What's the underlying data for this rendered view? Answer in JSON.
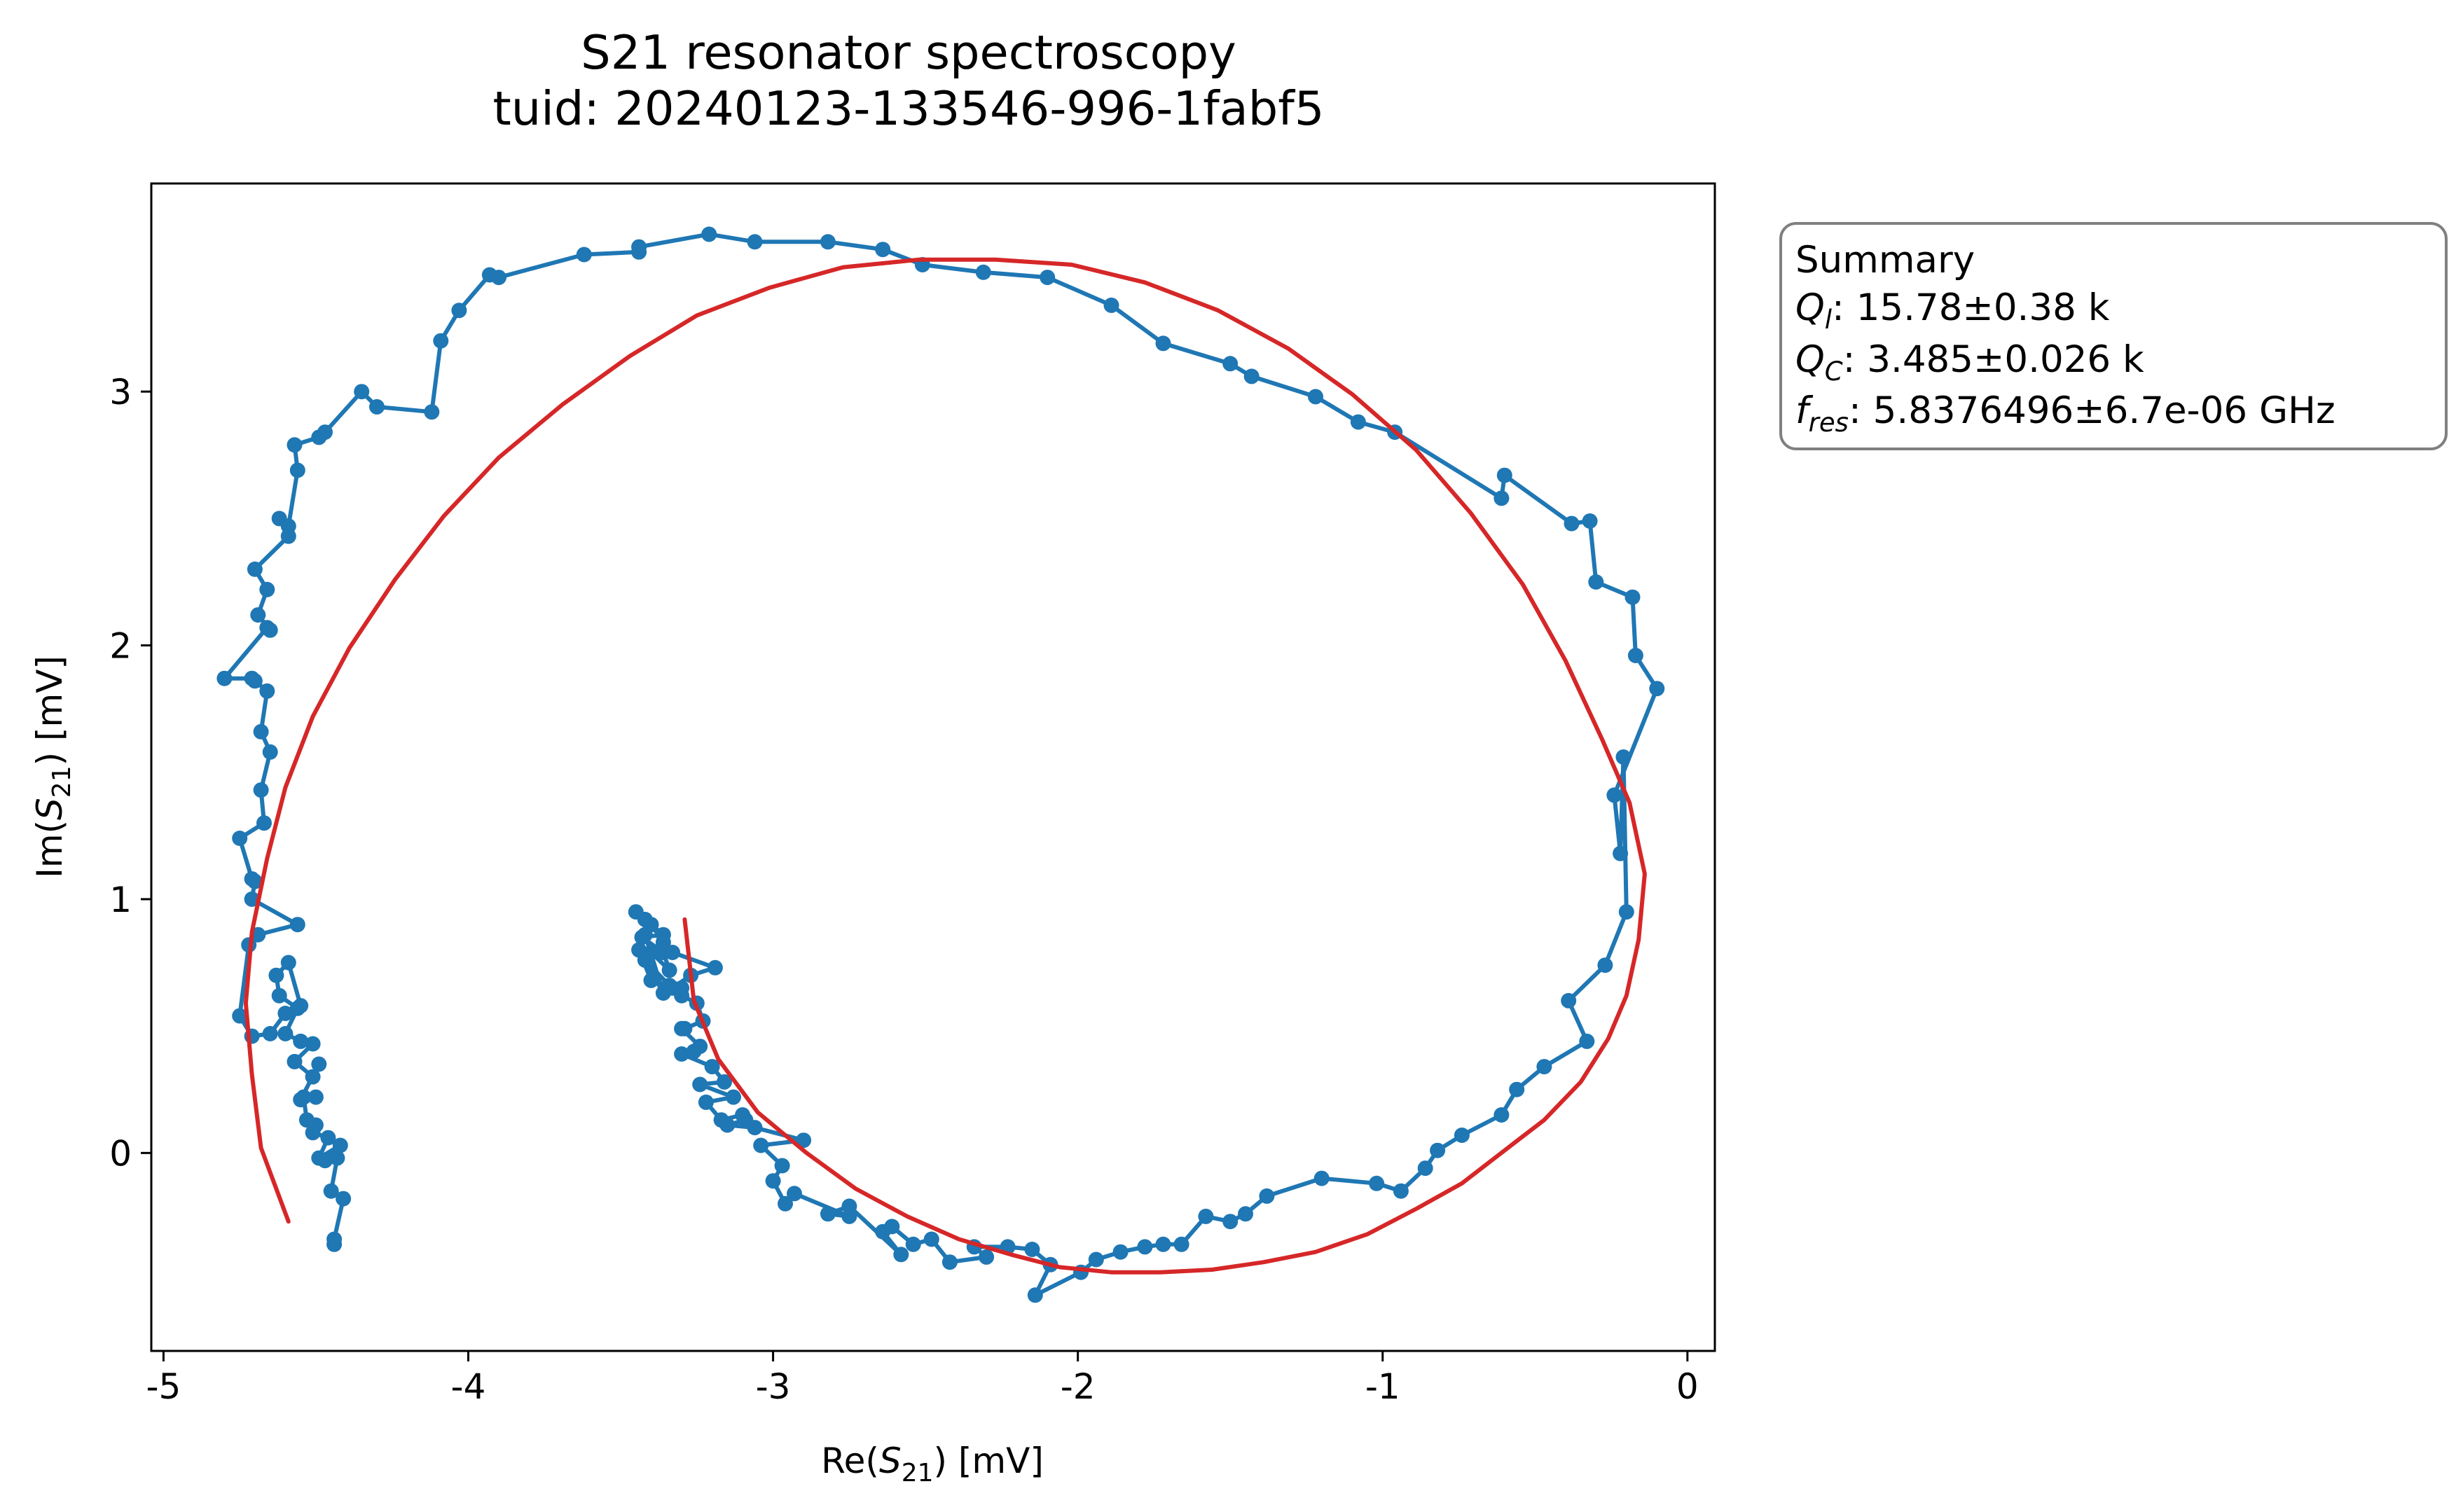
{
  "chart_data": {
    "type": "line",
    "title": "S21 resonator spectroscopy",
    "subtitle": "tuid: 20240123-133546-996-1fabf5",
    "xlabel": "Re(S21) [mV]",
    "ylabel": "Im(S21) [mV]",
    "xlabel_parts": [
      "Re(",
      "S",
      "21",
      ") [mV]"
    ],
    "ylabel_parts": [
      "Im(",
      "S",
      "21",
      ") [mV]"
    ],
    "xlim": [
      -5.04,
      0.09
    ],
    "ylim": [
      -0.78,
      3.82
    ],
    "xticks": [
      -5,
      -4,
      -3,
      -2,
      -1,
      0
    ],
    "yticks": [
      0,
      1,
      2,
      3
    ],
    "xtick_labels": [
      "-5",
      "-4",
      "-3",
      "-2",
      "-1",
      "0"
    ],
    "ytick_labels": [
      "0",
      "1",
      "2",
      "3"
    ],
    "grid": false,
    "summary": {
      "heading": "Summary",
      "ql_sym": "Q",
      "ql_sub": "l",
      "ql_value": ": 15.78±0.38 k",
      "qc_sym": "Q",
      "qc_sub": "C",
      "qc_value": ": 3.485±0.026 k",
      "fres_sym": "f",
      "fres_sub": "res",
      "fres_value": ": 5.8376496±6.7e-06 GHz"
    },
    "series": [
      {
        "color": "#1f77b4",
        "marker": "circle",
        "x": [
          -4.44,
          -4.44,
          -4.41,
          -4.45,
          -4.43,
          -4.47,
          -4.42,
          -4.49,
          -4.46,
          -4.51,
          -4.5,
          -4.53,
          -4.54,
          -4.5,
          -4.55,
          -4.49,
          -4.51,
          -4.57,
          -4.51,
          -4.55,
          -4.6,
          -4.56,
          -4.62,
          -4.63,
          -4.59,
          -4.55,
          -4.6,
          -4.65,
          -4.71,
          -4.75,
          -4.72,
          -4.69,
          -4.56,
          -4.71,
          -4.7,
          -4.71,
          -4.75,
          -4.67,
          -4.68,
          -4.65,
          -4.68,
          -4.66,
          -4.7,
          -4.71,
          -4.8,
          -4.66,
          -4.65,
          -4.69,
          -4.66,
          -4.7,
          -4.59,
          -4.62,
          -4.59,
          -4.56,
          -4.57,
          -4.49,
          -4.47,
          -4.35,
          -4.3,
          -4.12,
          -4.09,
          -4.03,
          -3.93,
          -3.9,
          -3.62,
          -3.44,
          -3.44,
          -3.21,
          -3.06,
          -2.82,
          -2.64,
          -2.51,
          -2.31,
          -2.1,
          -1.89,
          -1.72,
          -1.5,
          -1.43,
          -1.22,
          -1.08,
          -0.96,
          -0.61,
          -0.6,
          -0.38,
          -0.32,
          -0.3,
          -0.18,
          -0.17,
          -0.1,
          -0.24,
          -0.22,
          -0.21,
          -0.2,
          -0.27,
          -0.39,
          -0.33,
          -0.47,
          -0.56,
          -0.61,
          -0.74,
          -0.82,
          -0.86,
          -0.94,
          -1.02,
          -1.2,
          -1.38,
          -1.45,
          -1.5,
          -1.58,
          -1.66,
          -1.72,
          -1.78,
          -1.86,
          -1.94,
          -1.99,
          -2.14,
          -2.09,
          -2.15,
          -2.23,
          -2.34,
          -2.3,
          -2.42,
          -2.48,
          -2.54,
          -2.61,
          -2.64,
          -2.58,
          -2.75,
          -2.82,
          -2.75,
          -2.93,
          -2.96,
          -3.0,
          -2.97,
          -3.04,
          -2.9,
          -3.06,
          -3.15,
          -3.09,
          -3.1,
          -3.17,
          -3.22,
          -3.13,
          -3.24,
          -3.16,
          -3.2,
          -3.3,
          -3.26,
          -3.24,
          -3.3,
          -3.29,
          -3.23,
          -3.25,
          -3.3,
          -3.3,
          -3.33,
          -3.27,
          -3.19,
          -3.33,
          -3.36,
          -3.4,
          -3.36,
          -3.43,
          -3.36,
          -3.34,
          -3.4,
          -3.44,
          -3.4,
          -3.34,
          -3.42,
          -3.36,
          -3.42,
          -3.42,
          -3.45
        ],
        "y": [
          -0.36,
          -0.34,
          -0.18,
          -0.15,
          -0.02,
          -0.03,
          0.03,
          -0.02,
          0.06,
          0.08,
          0.11,
          0.13,
          0.22,
          0.22,
          0.21,
          0.35,
          0.3,
          0.36,
          0.43,
          0.44,
          0.47,
          0.57,
          0.62,
          0.7,
          0.75,
          0.58,
          0.55,
          0.47,
          0.46,
          0.54,
          0.82,
          0.86,
          0.9,
          1.0,
          1.07,
          1.08,
          1.24,
          1.3,
          1.43,
          1.58,
          1.66,
          1.82,
          1.86,
          1.87,
          1.87,
          2.07,
          2.06,
          2.12,
          2.22,
          2.3,
          2.43,
          2.5,
          2.47,
          2.69,
          2.79,
          2.82,
          2.84,
          3.0,
          2.94,
          2.92,
          3.2,
          3.32,
          3.46,
          3.45,
          3.54,
          3.55,
          3.57,
          3.62,
          3.59,
          3.59,
          3.56,
          3.5,
          3.47,
          3.45,
          3.34,
          3.19,
          3.11,
          3.06,
          2.98,
          2.88,
          2.84,
          2.58,
          2.67,
          2.48,
          2.49,
          2.25,
          2.19,
          1.96,
          1.83,
          1.41,
          1.18,
          1.56,
          0.95,
          0.74,
          0.6,
          0.44,
          0.34,
          0.25,
          0.15,
          0.07,
          0.01,
          -0.06,
          -0.15,
          -0.12,
          -0.1,
          -0.17,
          -0.24,
          -0.27,
          -0.25,
          -0.36,
          -0.36,
          -0.37,
          -0.39,
          -0.42,
          -0.47,
          -0.56,
          -0.44,
          -0.38,
          -0.37,
          -0.37,
          -0.41,
          -0.43,
          -0.34,
          -0.36,
          -0.29,
          -0.31,
          -0.4,
          -0.21,
          -0.24,
          -0.25,
          -0.16,
          -0.2,
          -0.11,
          -0.05,
          0.03,
          0.05,
          0.1,
          0.11,
          0.13,
          0.15,
          0.13,
          0.2,
          0.22,
          0.27,
          0.28,
          0.34,
          0.39,
          0.4,
          0.42,
          0.49,
          0.49,
          0.52,
          0.59,
          0.62,
          0.65,
          0.65,
          0.7,
          0.73,
          0.79,
          0.83,
          0.9,
          0.86,
          0.85,
          0.79,
          0.72,
          0.79,
          0.8,
          0.68,
          0.66,
          0.76,
          0.63,
          0.86,
          0.92,
          0.95
        ]
      },
      {
        "color": "#d62728",
        "marker": "none",
        "x": [
          -4.59,
          -4.68,
          -4.71,
          -4.73,
          -4.71,
          -4.66,
          -4.6,
          -4.51,
          -4.39,
          -4.24,
          -4.08,
          -3.9,
          -3.69,
          -3.47,
          -3.25,
          -3.01,
          -2.77,
          -2.52,
          -2.27,
          -2.02,
          -1.78,
          -1.54,
          -1.31,
          -1.1,
          -0.89,
          -0.71,
          -0.54,
          -0.4,
          -0.28,
          -0.19,
          -0.14,
          -0.16,
          -0.2,
          -0.26,
          -0.35,
          -0.47,
          -0.6,
          -0.74,
          -0.89,
          -1.05,
          -1.22,
          -1.39,
          -1.56,
          -1.73,
          -1.89,
          -2.06,
          -2.22,
          -2.39,
          -2.56,
          -2.73,
          -2.89,
          -3.05,
          -3.18,
          -3.26,
          -3.29
        ],
        "y": [
          -0.27,
          0.02,
          0.31,
          0.59,
          0.87,
          1.16,
          1.44,
          1.72,
          1.99,
          2.26,
          2.51,
          2.74,
          2.95,
          3.14,
          3.3,
          3.41,
          3.49,
          3.52,
          3.52,
          3.5,
          3.43,
          3.32,
          3.17,
          2.99,
          2.77,
          2.52,
          2.24,
          1.94,
          1.63,
          1.38,
          1.1,
          0.84,
          0.62,
          0.45,
          0.28,
          0.13,
          0.01,
          -0.12,
          -0.22,
          -0.32,
          -0.39,
          -0.43,
          -0.46,
          -0.47,
          -0.47,
          -0.45,
          -0.4,
          -0.34,
          -0.25,
          -0.14,
          0.0,
          0.16,
          0.37,
          0.6,
          0.92
        ]
      }
    ]
  }
}
